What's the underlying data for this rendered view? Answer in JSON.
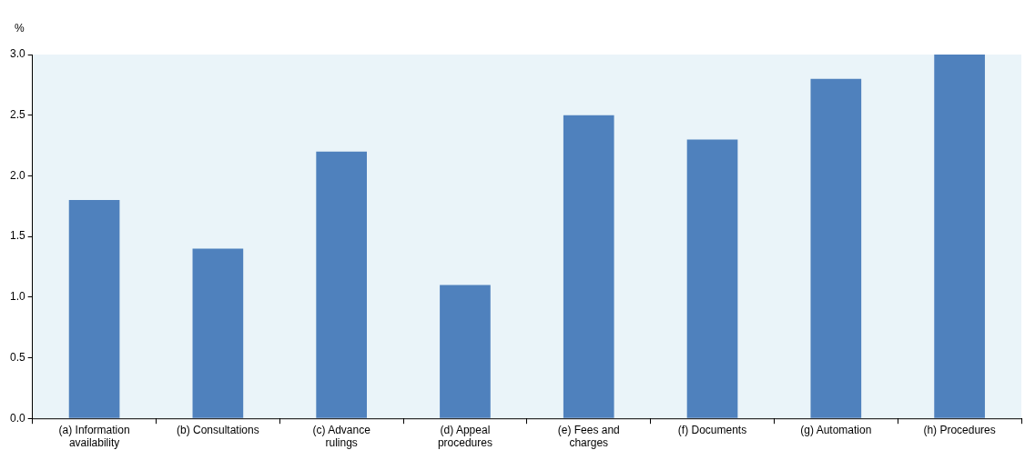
{
  "chart_data": {
    "type": "bar",
    "ylabel": "%",
    "categories": [
      "(a) Information availability",
      "(b) Consultations",
      "(c) Advance rulings",
      "(d) Appeal procedures",
      "(e) Fees and charges",
      "(f) Documents",
      "(g) Automation",
      "(h) Procedures"
    ],
    "values": [
      1.8,
      1.4,
      2.2,
      1.1,
      2.5,
      2.3,
      2.8,
      3.0
    ],
    "color": "#4f81bd",
    "ylim": [
      0,
      3
    ],
    "yticks": [
      {
        "value": 0,
        "label": "0.0"
      },
      {
        "value": 0.5,
        "label": "0.5"
      },
      {
        "value": 1,
        "label": "1.0"
      },
      {
        "value": 1.5,
        "label": "1.5"
      },
      {
        "value": 2,
        "label": "2.0"
      },
      {
        "value": 2.5,
        "label": "2.5"
      },
      {
        "value": 3,
        "label": "3.0"
      }
    ],
    "grid": false,
    "legend": false
  }
}
